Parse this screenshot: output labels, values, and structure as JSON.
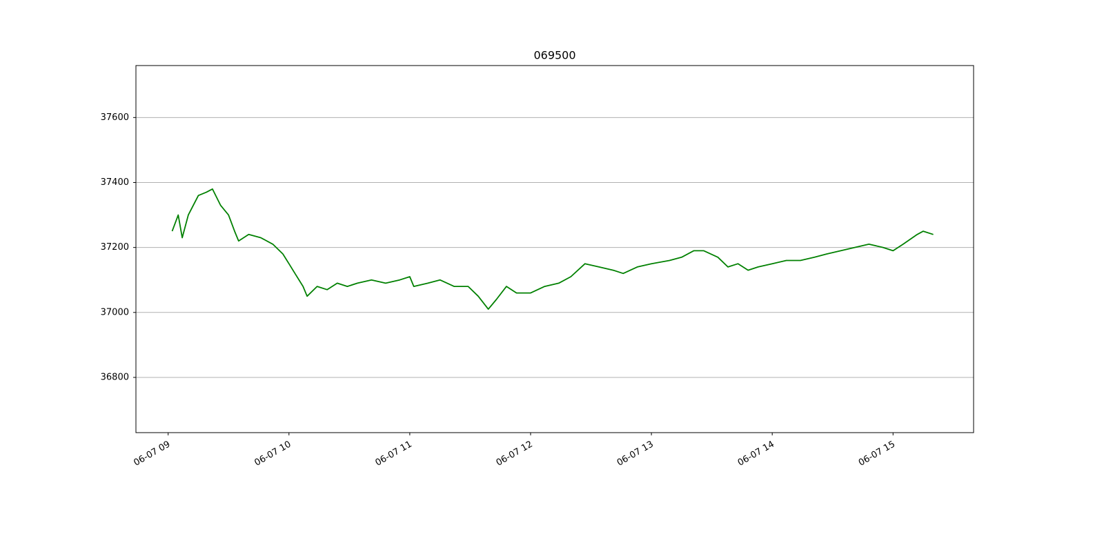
{
  "chart_data": {
    "type": "line",
    "title": "069500",
    "x": [
      "06-07 09:02",
      "06-07 09:05",
      "06-07 09:07",
      "06-07 09:10",
      "06-07 09:15",
      "06-07 09:19",
      "06-07 09:22",
      "06-07 09:26",
      "06-07 09:30",
      "06-07 09:33",
      "06-07 09:35",
      "06-07 09:40",
      "06-07 09:46",
      "06-07 09:52",
      "06-07 09:57",
      "06-07 10:00",
      "06-07 10:03",
      "06-07 10:07",
      "06-07 10:09",
      "06-07 10:14",
      "06-07 10:19",
      "06-07 10:24",
      "06-07 10:29",
      "06-07 10:34",
      "06-07 10:41",
      "06-07 10:48",
      "06-07 10:55",
      "06-07 11:00",
      "06-07 11:02",
      "06-07 11:09",
      "06-07 11:15",
      "06-07 11:22",
      "06-07 11:29",
      "06-07 11:34",
      "06-07 11:39",
      "06-07 11:43",
      "06-07 11:48",
      "06-07 11:53",
      "06-07 12:00",
      "06-07 12:07",
      "06-07 12:14",
      "06-07 12:20",
      "06-07 12:27",
      "06-07 12:34",
      "06-07 12:41",
      "06-07 12:46",
      "06-07 12:53",
      "06-07 13:00",
      "06-07 13:09",
      "06-07 13:15",
      "06-07 13:21",
      "06-07 13:26",
      "06-07 13:33",
      "06-07 13:38",
      "06-07 13:43",
      "06-07 13:48",
      "06-07 13:53",
      "06-07 14:00",
      "06-07 14:07",
      "06-07 14:14",
      "06-07 14:21",
      "06-07 14:27",
      "06-07 14:34",
      "06-07 14:41",
      "06-07 14:48",
      "06-07 14:55",
      "06-07 15:00",
      "06-07 15:05",
      "06-07 15:12",
      "06-07 15:15",
      "06-07 15:20"
    ],
    "series": [
      {
        "name": "069500",
        "color": "#008000",
        "values": [
          37250,
          37300,
          37230,
          37300,
          37360,
          37370,
          37380,
          37330,
          37300,
          37250,
          37220,
          37240,
          37230,
          37210,
          37180,
          37150,
          37120,
          37080,
          37050,
          37080,
          37070,
          37090,
          37080,
          37090,
          37100,
          37090,
          37100,
          37110,
          37080,
          37090,
          37100,
          37080,
          37080,
          37050,
          37010,
          37040,
          37080,
          37060,
          37060,
          37080,
          37090,
          37110,
          37150,
          37140,
          37130,
          37120,
          37140,
          37150,
          37160,
          37170,
          37190,
          37190,
          37170,
          37140,
          37150,
          37130,
          37140,
          37150,
          37160,
          37160,
          37170,
          37180,
          37190,
          37200,
          37210,
          37200,
          37190,
          37210,
          37240,
          37250,
          37240
        ]
      }
    ],
    "xlim": [
      "06-07 08:44",
      "06-07 15:40"
    ],
    "xticks": [
      "06-07 09",
      "06-07 10",
      "06-07 11",
      "06-07 12",
      "06-07 13",
      "06-07 14",
      "06-07 15"
    ],
    "ylim": [
      36630,
      37760
    ],
    "yticks": [
      36800,
      37000,
      37200,
      37400,
      37600
    ],
    "grid": true
  }
}
